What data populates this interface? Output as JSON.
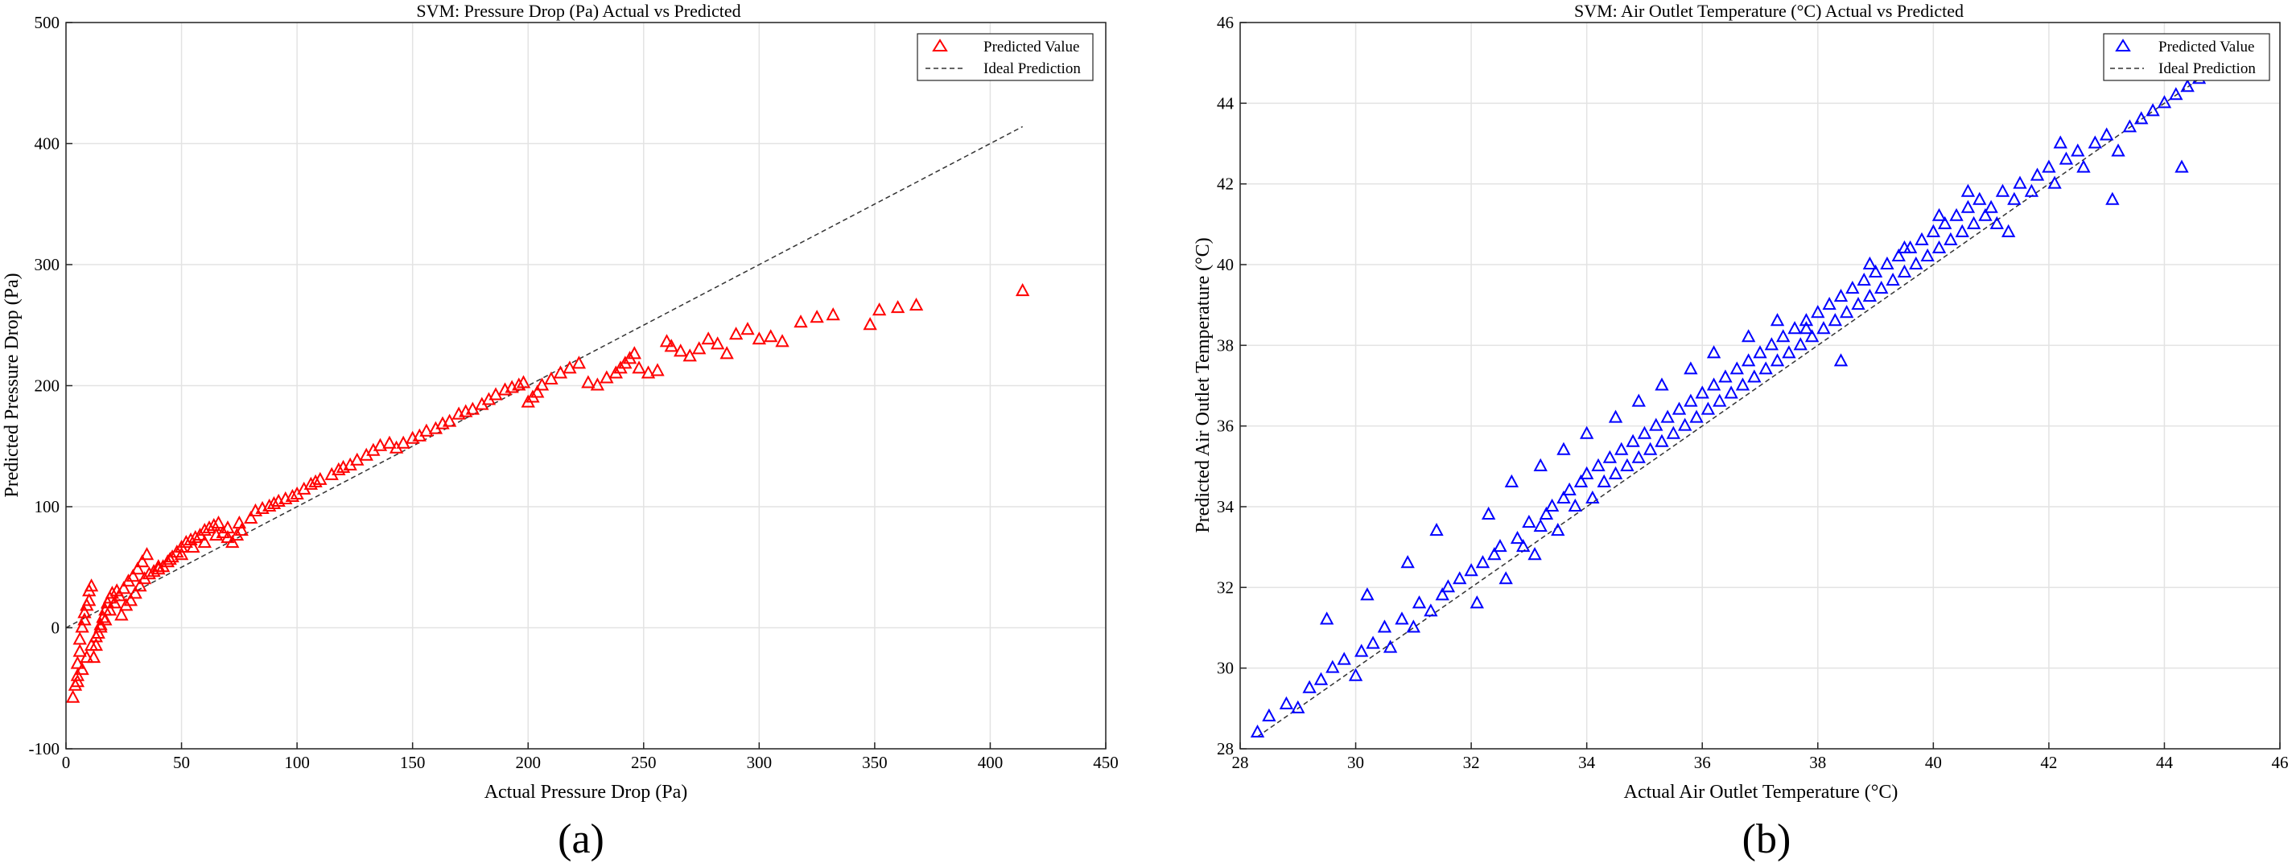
{
  "chart_data": [
    {
      "type": "scatter",
      "panel_label": "(a)",
      "title": "SVM: Pressure Drop (Pa) Actual vs Predicted",
      "xlabel": "Actual Pressure Drop (Pa)",
      "ylabel": "Predicted Pressure Drop (Pa)",
      "xlim": [
        0,
        450
      ],
      "ylim": [
        -100,
        500
      ],
      "xticks": [
        0,
        50,
        100,
        150,
        200,
        250,
        300,
        350,
        400,
        450
      ],
      "yticks": [
        -100,
        0,
        100,
        200,
        300,
        400,
        500
      ],
      "grid": true,
      "legend_position": "top-right",
      "marker": "triangle",
      "series_color": "#ff0000",
      "series": [
        {
          "name": "Predicted Value",
          "x": [
            3,
            4,
            5,
            5,
            6,
            6,
            7,
            8,
            8,
            9,
            10,
            10,
            11,
            12,
            13,
            14,
            15,
            16,
            17,
            18,
            19,
            20,
            22,
            24,
            26,
            28,
            30,
            32,
            34,
            36,
            38,
            40,
            42,
            44,
            46,
            48,
            50,
            52,
            54,
            56,
            58,
            60,
            62,
            64,
            66,
            68,
            70,
            72,
            74,
            76,
            5,
            7,
            9,
            11,
            13,
            15,
            17,
            19,
            21,
            23,
            25,
            27,
            29,
            31,
            33,
            35,
            40,
            45,
            50,
            55,
            60,
            65,
            70,
            75,
            80,
            82,
            85,
            88,
            90,
            92,
            95,
            98,
            100,
            103,
            106,
            108,
            110,
            115,
            118,
            120,
            123,
            126,
            130,
            133,
            136,
            140,
            143,
            146,
            150,
            153,
            156,
            160,
            163,
            166,
            170,
            173,
            176,
            180,
            183,
            186,
            190,
            193,
            196,
            198,
            200,
            202,
            204,
            206,
            210,
            214,
            218,
            222,
            226,
            230,
            234,
            238,
            240,
            242,
            244,
            246,
            248,
            252,
            256,
            260,
            262,
            266,
            270,
            274,
            278,
            282,
            286,
            290,
            295,
            300,
            305,
            310,
            318,
            325,
            332,
            348,
            352,
            360,
            368,
            414
          ],
          "y": [
            -58,
            -48,
            -40,
            -30,
            -20,
            -10,
            0,
            6,
            12,
            18,
            22,
            30,
            34,
            -25,
            -15,
            -5,
            2,
            8,
            14,
            20,
            24,
            28,
            30,
            10,
            18,
            22,
            28,
            34,
            40,
            44,
            46,
            48,
            50,
            54,
            58,
            62,
            66,
            70,
            72,
            74,
            76,
            80,
            82,
            84,
            86,
            78,
            74,
            70,
            76,
            80,
            -45,
            -35,
            -25,
            -15,
            -8,
            0,
            6,
            14,
            20,
            26,
            32,
            38,
            42,
            48,
            54,
            60,
            50,
            56,
            60,
            66,
            70,
            76,
            82,
            86,
            90,
            96,
            98,
            100,
            102,
            104,
            106,
            108,
            110,
            114,
            118,
            120,
            122,
            126,
            130,
            132,
            134,
            138,
            142,
            146,
            150,
            152,
            148,
            152,
            156,
            158,
            162,
            164,
            168,
            170,
            176,
            178,
            180,
            184,
            188,
            192,
            196,
            198,
            200,
            202,
            186,
            190,
            194,
            200,
            205,
            210,
            214,
            218,
            202,
            200,
            206,
            210,
            214,
            218,
            222,
            226,
            214,
            210,
            212,
            236,
            232,
            228,
            224,
            230,
            238,
            234,
            226,
            242,
            246,
            238,
            240,
            236,
            252,
            256,
            258,
            250,
            262,
            264,
            266,
            278
          ]
        }
      ],
      "reference_line": {
        "name": "Ideal Prediction",
        "x": [
          0,
          414
        ],
        "y": [
          0,
          414
        ]
      }
    },
    {
      "type": "scatter",
      "panel_label": "(b)",
      "title": "SVM: Air Outlet Temperature (°C) Actual vs Predicted",
      "xlabel": "Actual Air Outlet Temperature (°C)",
      "ylabel": "Predicted Air Outlet Temperature (°C)",
      "xlim": [
        28,
        46
      ],
      "ylim": [
        28,
        46
      ],
      "xticks": [
        28,
        30,
        32,
        34,
        36,
        38,
        40,
        42,
        44,
        46
      ],
      "yticks": [
        28,
        30,
        32,
        34,
        36,
        38,
        40,
        42,
        44,
        46
      ],
      "grid": true,
      "legend_position": "top-right",
      "marker": "triangle",
      "series_color": "#0000ff",
      "series": [
        {
          "name": "Predicted Value",
          "x": [
            28.3,
            28.5,
            28.8,
            29.0,
            29.2,
            29.4,
            29.6,
            29.8,
            30.0,
            30.1,
            30.3,
            30.5,
            30.6,
            30.8,
            31.0,
            31.1,
            31.3,
            31.5,
            31.6,
            31.8,
            32.0,
            32.1,
            32.2,
            32.4,
            32.5,
            32.6,
            32.8,
            32.9,
            33.0,
            33.1,
            33.2,
            33.3,
            33.4,
            33.5,
            33.6,
            33.7,
            33.8,
            33.9,
            34.0,
            34.1,
            34.2,
            34.3,
            34.4,
            34.5,
            34.6,
            34.7,
            34.8,
            34.9,
            35.0,
            35.1,
            35.2,
            35.3,
            35.4,
            35.5,
            35.6,
            35.7,
            35.8,
            35.9,
            36.0,
            36.1,
            36.2,
            36.3,
            36.4,
            36.5,
            36.6,
            36.7,
            36.8,
            36.9,
            37.0,
            37.1,
            37.2,
            37.3,
            37.4,
            37.5,
            37.6,
            37.7,
            37.8,
            37.9,
            38.0,
            38.1,
            38.2,
            38.3,
            38.4,
            38.5,
            38.6,
            38.7,
            38.8,
            38.9,
            39.0,
            39.1,
            39.2,
            39.3,
            39.4,
            39.5,
            39.6,
            39.7,
            39.8,
            39.9,
            40.0,
            40.1,
            40.2,
            40.3,
            40.4,
            40.5,
            40.6,
            40.7,
            40.8,
            40.9,
            41.0,
            41.1,
            41.2,
            41.4,
            41.5,
            41.7,
            41.8,
            42.0,
            42.1,
            42.3,
            42.5,
            42.6,
            42.8,
            43.0,
            43.2,
            43.4,
            43.6,
            43.8,
            44.0,
            44.2,
            44.4,
            44.6,
            29.5,
            30.2,
            30.9,
            31.4,
            32.3,
            32.7,
            33.2,
            33.6,
            34.0,
            34.5,
            34.9,
            35.3,
            35.8,
            36.2,
            36.8,
            37.3,
            37.8,
            38.4,
            38.9,
            39.5,
            40.1,
            40.6,
            41.3,
            42.2,
            43.1,
            44.3
          ],
          "y": [
            28.4,
            28.8,
            29.1,
            29.0,
            29.5,
            29.7,
            30.0,
            30.2,
            29.8,
            30.4,
            30.6,
            31.0,
            30.5,
            31.2,
            31.0,
            31.6,
            31.4,
            31.8,
            32.0,
            32.2,
            32.4,
            31.6,
            32.6,
            32.8,
            33.0,
            32.2,
            33.2,
            33.0,
            33.6,
            32.8,
            33.5,
            33.8,
            34.0,
            33.4,
            34.2,
            34.4,
            34.0,
            34.6,
            34.8,
            34.2,
            35.0,
            34.6,
            35.2,
            34.8,
            35.4,
            35.0,
            35.6,
            35.2,
            35.8,
            35.4,
            36.0,
            35.6,
            36.2,
            35.8,
            36.4,
            36.0,
            36.6,
            36.2,
            36.8,
            36.4,
            37.0,
            36.6,
            37.2,
            36.8,
            37.4,
            37.0,
            37.6,
            37.2,
            37.8,
            37.4,
            38.0,
            37.6,
            38.2,
            37.8,
            38.4,
            38.0,
            38.6,
            38.2,
            38.8,
            38.4,
            39.0,
            38.6,
            39.2,
            38.8,
            39.4,
            39.0,
            39.6,
            39.2,
            39.8,
            39.4,
            40.0,
            39.6,
            40.2,
            39.8,
            40.4,
            40.0,
            40.6,
            40.2,
            40.8,
            40.4,
            41.0,
            40.6,
            41.2,
            40.8,
            41.4,
            41.0,
            41.6,
            41.2,
            41.4,
            41.0,
            41.8,
            41.6,
            42.0,
            41.8,
            42.2,
            42.4,
            42.0,
            42.6,
            42.8,
            42.4,
            43.0,
            43.2,
            42.8,
            43.4,
            43.6,
            43.8,
            44.0,
            44.2,
            44.4,
            44.6,
            31.2,
            31.8,
            32.6,
            33.4,
            33.8,
            34.6,
            35.0,
            35.4,
            35.8,
            36.2,
            36.6,
            37.0,
            37.4,
            37.8,
            38.2,
            38.6,
            38.4,
            37.6,
            40.0,
            40.4,
            41.2,
            41.8,
            40.8,
            43.0,
            41.6,
            42.4
          ]
        }
      ],
      "reference_line": {
        "name": "Ideal Prediction",
        "x": [
          28.3,
          44.6
        ],
        "y": [
          28.3,
          44.6
        ]
      }
    }
  ]
}
